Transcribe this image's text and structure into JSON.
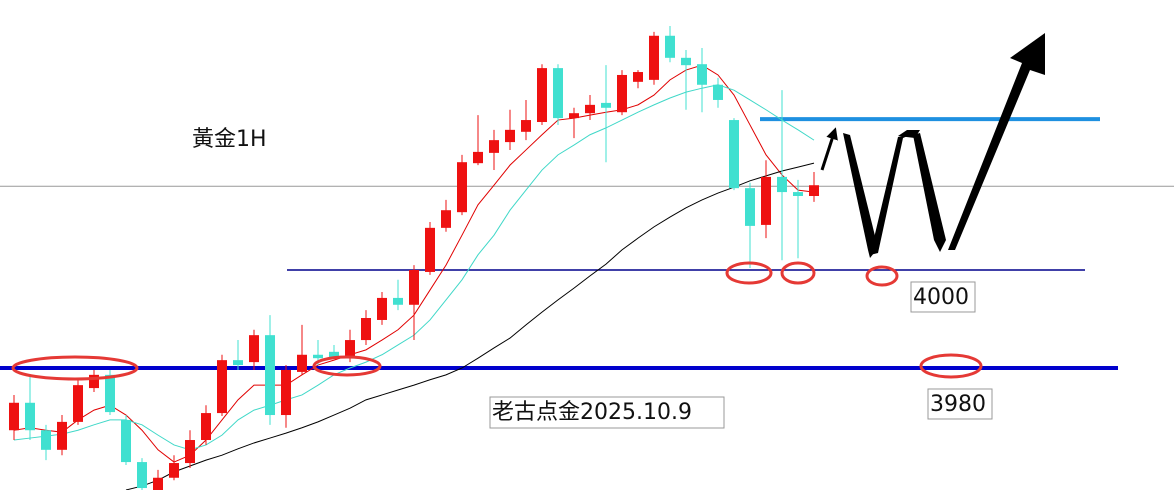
{
  "chart_data": {
    "type": "candlestick",
    "title": "黃金1H",
    "annotation": "老古点金2025.10.9",
    "ylim": [
      3955.1,
      4055.1
    ],
    "up_color": "#ee1111",
    "down_color": "#40e0d0",
    "open": [
      3967.3,
      3972.9,
      3967.3,
      3963.3,
      3969.0,
      3975.9,
      3978.6,
      3969.4,
      3960.8,
      3955.1,
      3957.6,
      3960.6,
      3965.3,
      3970.8,
      3981.6,
      3981.2,
      3986.7,
      3970.4,
      3979.2,
      3982.7,
      3983.3,
      3982.0,
      3985.7,
      3989.8,
      3994.3,
      3992.9,
      3999.6,
      4008.6,
      4011.8,
      4021.8,
      4023.9,
      4026.1,
      4028.2,
      4030.2,
      4041.2,
      4031.0,
      4032.0,
      4034.1,
      4032.2,
      4038.4,
      4038.8,
      4047.8,
      4043.3,
      4042.0,
      4037.8,
      4030.6,
      4016.7,
      4009.2,
      4019.0,
      4015.9,
      4015.1
    ],
    "high": [
      3974.5,
      3978.6,
      3968.4,
      3970.4,
      3977.6,
      3979.6,
      3979.6,
      3970.4,
      3961.6,
      3959.2,
      3962.2,
      3967.3,
      3972.4,
      3982.7,
      3985.7,
      3987.8,
      3990.8,
      3980.6,
      3988.8,
      3985.7,
      3984.7,
      3987.8,
      3991.8,
      3995.5,
      3998.0,
      4001.0,
      4009.8,
      4014.3,
      4023.5,
      4031.6,
      4028.6,
      4032.7,
      4034.7,
      4042.0,
      4042.0,
      4033.1,
      4035.7,
      4041.8,
      4040.8,
      4040.8,
      4048.6,
      4049.8,
      4044.9,
      4045.3,
      4039.2,
      4031.0,
      4017.8,
      4022.4,
      4036.7,
      4018.4,
      4020.0
    ],
    "low": [
      3965.3,
      3965.3,
      3961.2,
      3962.2,
      3968.4,
      3975.1,
      3970.4,
      3960.2,
      3955.1,
      3955.1,
      3957.1,
      3959.6,
      3964.3,
      3970.2,
      3979.6,
      3979.6,
      3968.4,
      3967.8,
      3978.6,
      3980.6,
      3982.0,
      3981.2,
      3984.7,
      3988.8,
      3991.8,
      3985.7,
      3999.0,
      4007.8,
      4011.2,
      4021.4,
      4020.4,
      4024.5,
      4026.5,
      4029.6,
      4029.6,
      4026.9,
      4030.6,
      4022.0,
      4031.6,
      4037.1,
      4037.8,
      4042.4,
      4032.7,
      4032.2,
      4033.1,
      4016.3,
      4000.4,
      4006.5,
      4002.0,
      4002.4,
      4013.9
    ],
    "close": [
      3972.9,
      3967.3,
      3963.3,
      3969.0,
      3976.5,
      3978.6,
      3971.0,
      3960.8,
      3955.5,
      3957.6,
      3960.6,
      3965.3,
      3970.8,
      3981.6,
      3980.6,
      3986.7,
      3970.4,
      3979.6,
      3982.7,
      3982.0,
      3982.2,
      3985.7,
      3990.2,
      3994.3,
      3992.9,
      4000.0,
      4008.6,
      4012.2,
      4022.0,
      4024.1,
      4026.5,
      4028.6,
      4030.6,
      4041.2,
      4031.0,
      4032.0,
      4033.7,
      4033.1,
      4039.8,
      4040.4,
      4047.8,
      4043.3,
      4041.8,
      4037.8,
      4034.7,
      4016.7,
      4009.0,
      4019.0,
      4015.9,
      4015.1,
      4017.3
    ],
    "series": [
      {
        "color": "#e00000",
        "width": 1,
        "values": [
          3967.3,
          3967.8,
          3967.3,
          3966.9,
          3969.4,
          3971.4,
          3972.4,
          3970.4,
          3967.3,
          3963.3,
          3960.8,
          3962.2,
          3965.3,
          3969.4,
          3973.5,
          3976.5,
          3976.5,
          3976.5,
          3978.6,
          3980.6,
          3981.6,
          3982.7,
          3983.7,
          3985.7,
          3987.8,
          3990.8,
          3995.9,
          4001.0,
          4007.1,
          4013.3,
          4017.3,
          4021.4,
          4024.5,
          4027.6,
          4030.6,
          4031.0,
          4031.6,
          4032.2,
          4032.7,
          4033.7,
          4035.7,
          4038.8,
          4040.8,
          4041.8,
          4039.8,
          4035.7,
          4029.6,
          4023.5,
          4019.4,
          4016.3,
          4015.9
        ]
      },
      {
        "color": "#40d8c8",
        "width": 1,
        "values": [
          3965.3,
          3965.7,
          3966.1,
          3966.5,
          3967.3,
          3968.4,
          3969.4,
          3969.4,
          3968.4,
          3966.3,
          3964.3,
          3963.3,
          3964.3,
          3966.3,
          3969.4,
          3971.4,
          3972.4,
          3973.5,
          3974.5,
          3976.5,
          3978.6,
          3980.0,
          3981.2,
          3982.7,
          3984.7,
          3986.7,
          3989.8,
          3993.9,
          3998.0,
          4003.1,
          4007.1,
          4012.2,
          4016.3,
          4020.4,
          4023.5,
          4025.5,
          4027.6,
          4029.0,
          4030.6,
          4032.2,
          4033.7,
          4035.1,
          4036.3,
          4037.1,
          4037.8,
          4036.7,
          4034.7,
          4032.7,
          4030.6,
          4028.6,
          4026.5
        ]
      },
      {
        "color": "#000000",
        "width": 1,
        "values": [
          null,
          null,
          null,
          null,
          null,
          null,
          null,
          3955.1,
          3955.9,
          3957.1,
          3958.8,
          3960.0,
          3961.2,
          3962.2,
          3963.5,
          3964.7,
          3965.7,
          3966.7,
          3967.8,
          3969.0,
          3970.4,
          3971.8,
          3973.5,
          3974.5,
          3975.5,
          3976.5,
          3977.6,
          3978.6,
          3980.0,
          3982.0,
          3984.1,
          3986.1,
          3988.8,
          3991.4,
          3993.9,
          3996.3,
          3998.8,
          4001.2,
          4004.1,
          4006.5,
          4008.8,
          4010.8,
          4012.7,
          4014.3,
          4015.7,
          4016.9,
          4018.2,
          4019.2,
          4020.2,
          4021.0,
          4021.8
        ]
      }
    ],
    "levels": [
      {
        "value": 4000,
        "color": "#00008b",
        "width": 1.5
      },
      {
        "value": 3980,
        "color": "#0000cd",
        "width": 4
      }
    ],
    "resistance": {
      "value": 4030.8,
      "color": "#1e90e0",
      "width": 4
    },
    "price_line": {
      "value": 4017.1,
      "color": "#999999",
      "width": 1
    }
  }
}
